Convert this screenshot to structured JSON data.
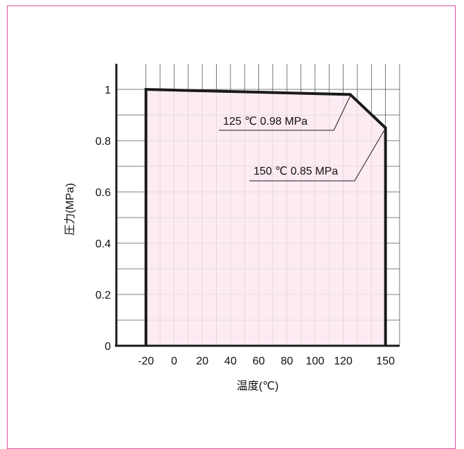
{
  "chart_data": {
    "type": "area",
    "xlabel": "温度(℃)",
    "ylabel": "圧力(MPa)",
    "x_ticks": [
      "-20",
      "0",
      "20",
      "40",
      "60",
      "80",
      "100",
      "120",
      "150"
    ],
    "x_tick_values": [
      -20,
      0,
      20,
      40,
      60,
      80,
      100,
      120,
      150
    ],
    "y_ticks": [
      "0",
      "0.2",
      "0.4",
      "0.6",
      "0.8",
      "1"
    ],
    "y_tick_values": [
      0,
      0.2,
      0.4,
      0.6,
      0.8,
      1.0
    ],
    "xlim": [
      -41,
      160
    ],
    "ylim": [
      0,
      1.1
    ],
    "grid": true,
    "series": [
      {
        "points": [
          {
            "x": -20,
            "y": 0
          },
          {
            "x": -20,
            "y": 1.0
          },
          {
            "x": 125,
            "y": 0.98
          },
          {
            "x": 150,
            "y": 0.85
          },
          {
            "x": 150,
            "y": 0
          }
        ]
      }
    ],
    "annotations": [
      {
        "text": "125 ℃ 0.98 MPa",
        "x": 125,
        "y": 0.98
      },
      {
        "text": "150 ℃ 0.85 MPa",
        "x": 150,
        "y": 0.85
      }
    ],
    "colors": {
      "fill": "#fce8f1",
      "border": "#e0509a",
      "grid": "#555555",
      "line": "#1a1a1a"
    }
  }
}
